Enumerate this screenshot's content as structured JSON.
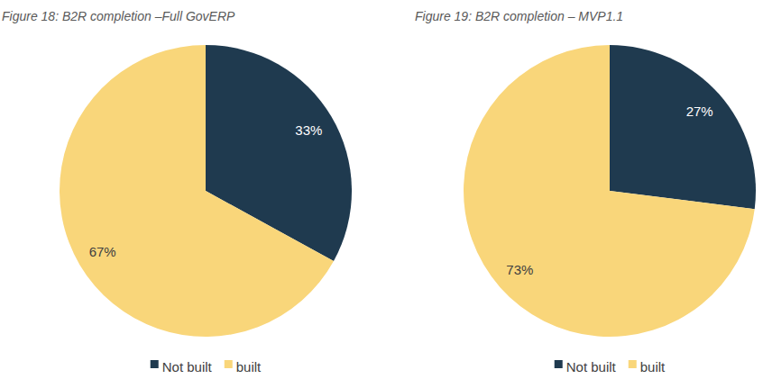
{
  "chart_data": [
    {
      "type": "pie",
      "title": "Figure 18: B2R completion –Full GovERP",
      "categories": [
        "Not built",
        "built"
      ],
      "values": [
        33,
        67
      ],
      "value_labels": [
        "33%",
        "67%"
      ],
      "colors": [
        "#1f3a4f",
        "#f9d67a"
      ],
      "data_labels": true,
      "legend": "bottom"
    },
    {
      "type": "pie",
      "title": "Figure 19: B2R completion – MVP1.1",
      "categories": [
        "Not built",
        "built"
      ],
      "values": [
        27,
        73
      ],
      "value_labels": [
        "27%",
        "73%"
      ],
      "colors": [
        "#1f3a4f",
        "#f9d67a"
      ],
      "data_labels": true,
      "legend": "bottom"
    }
  ]
}
